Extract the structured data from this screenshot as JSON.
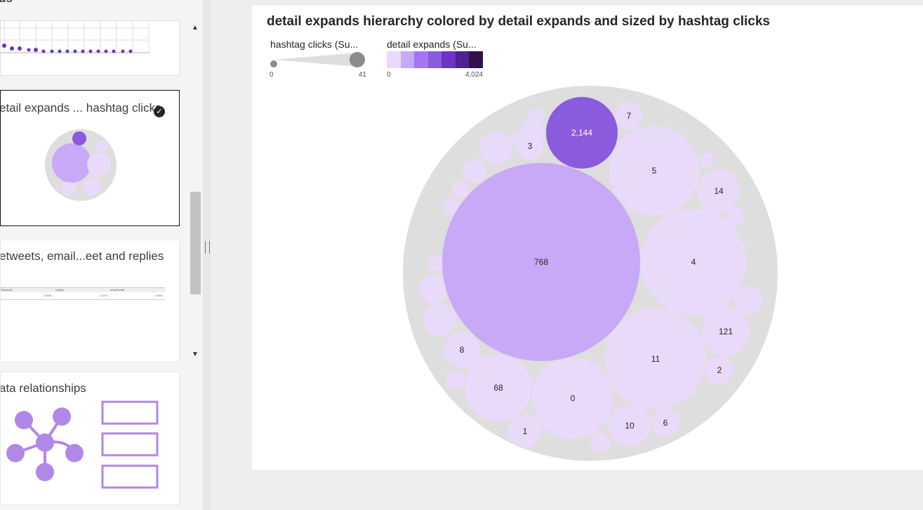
{
  "sidebar": {
    "cut_title": "ds",
    "cards": [
      {
        "title": ""
      },
      {
        "title": "etail expands ... hashtag clicks",
        "selected": true
      },
      {
        "title": "etweets, email...eet and replies"
      },
      {
        "title": "ata relationships"
      }
    ]
  },
  "mini_table": {
    "headers": [
      "Retweets",
      "replies",
      "email tweet"
    ],
    "values": [
      "3,405",
      "1,473",
      "4,093"
    ]
  },
  "chart_data": {
    "type": "circle_packing",
    "title": "detail expands hierarchy colored by detail expands and sized by hashtag clicks",
    "size_legend": {
      "label": "hashtag clicks (Su...",
      "min": "0",
      "max": "41"
    },
    "color_legend": {
      "label": "detail expands (Su...",
      "min": "0",
      "max": "4,024",
      "colors": [
        "#e8daf8",
        "#c7a9f7",
        "#a676f0",
        "#8b5bdd",
        "#6e32c4",
        "#4e2290",
        "#30124f"
      ]
    },
    "nodes": [
      {
        "label": "768",
        "value": 768
      },
      {
        "label": "2,144",
        "value": 2144
      },
      {
        "label": "4",
        "value": 4
      },
      {
        "label": "5",
        "value": 5
      },
      {
        "label": "11",
        "value": 11
      },
      {
        "label": "0",
        "value": 0
      },
      {
        "label": "68",
        "value": 68
      },
      {
        "label": "121",
        "value": 121
      },
      {
        "label": "14",
        "value": 14
      },
      {
        "label": "10",
        "value": 10
      },
      {
        "label": "3",
        "value": 3
      },
      {
        "label": "8",
        "value": 8
      },
      {
        "label": "7",
        "value": 7
      },
      {
        "label": "6",
        "value": 6
      },
      {
        "label": "2",
        "value": 2
      },
      {
        "label": "1",
        "value": 1
      }
    ]
  }
}
